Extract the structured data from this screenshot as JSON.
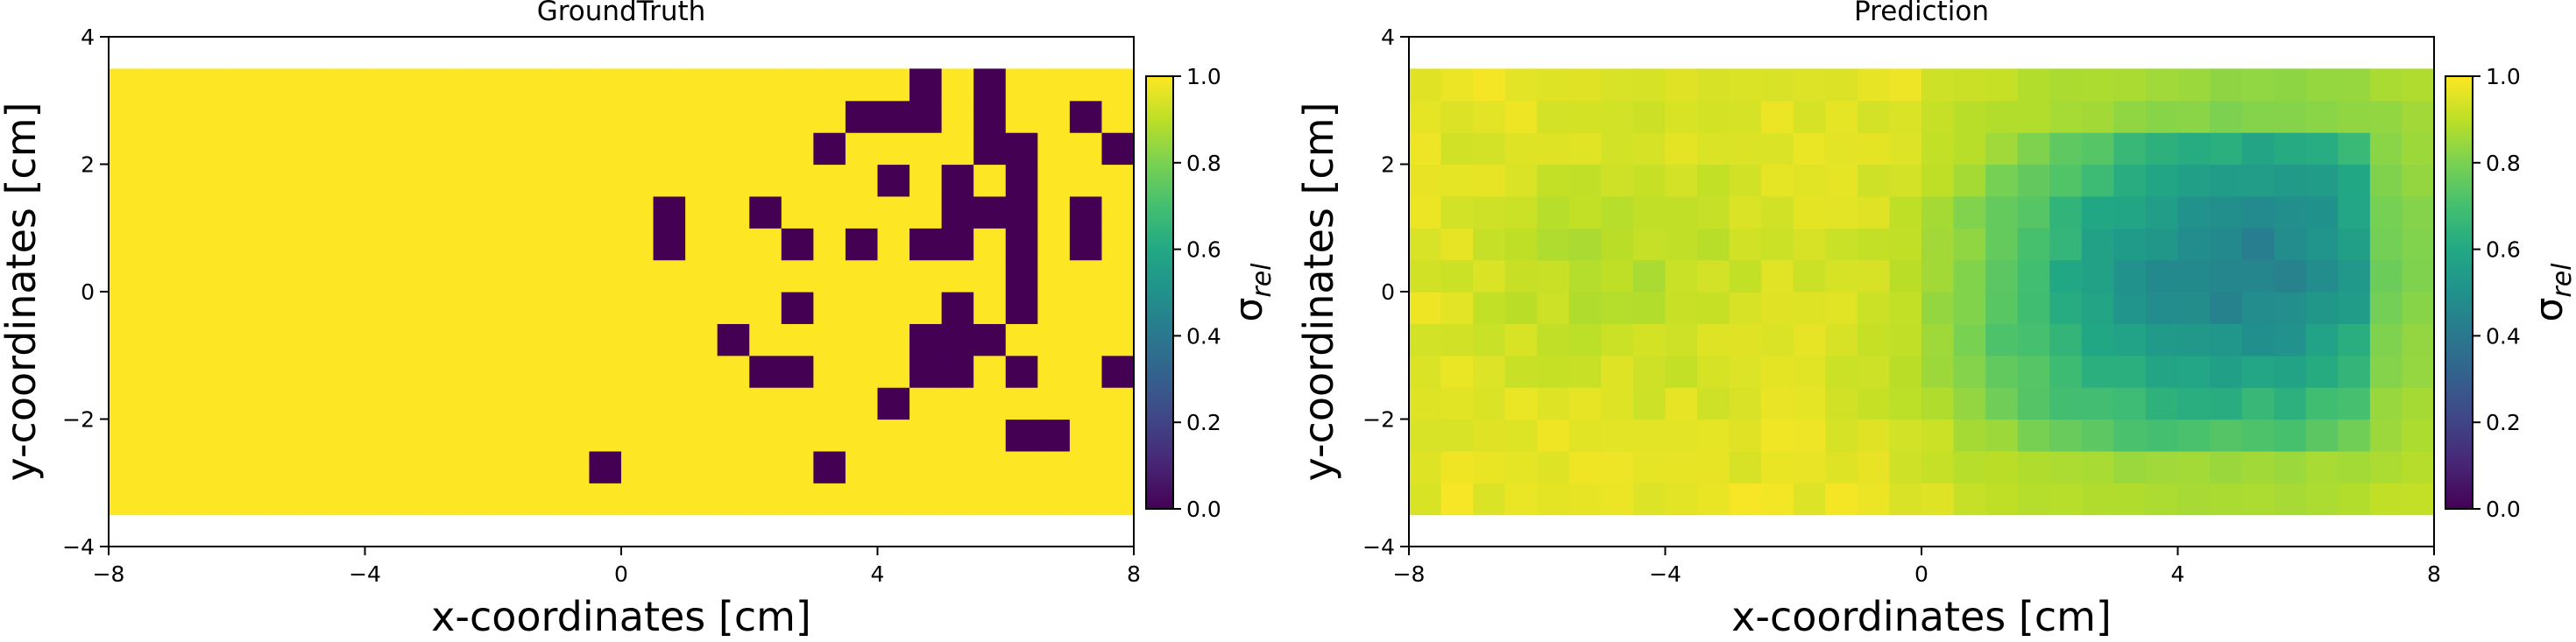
{
  "chart_data": [
    {
      "type": "heatmap",
      "title": "GroundTruth",
      "xlabel": "x-coordinates [cm]",
      "ylabel": "y-coordinates [cm]",
      "xlim": [
        -8,
        8
      ],
      "ylim": [
        -4,
        4
      ],
      "xticks": [
        -8,
        -4,
        0,
        4,
        8
      ],
      "yticks": [
        -4,
        -2,
        0,
        2,
        4
      ],
      "xtick_labels": [
        "−8",
        "−4",
        "0",
        "4",
        "8"
      ],
      "ytick_labels": [
        "−4",
        "−2",
        "0",
        "2",
        "4"
      ],
      "grid": false,
      "colormap": "viridis",
      "colorbar": {
        "label": "σ_rel",
        "label_main": "σ",
        "label_sub": "rel",
        "range": [
          0,
          1
        ],
        "ticks": [
          "0.0",
          "0.2",
          "0.4",
          "0.6",
          "0.8",
          "1.0"
        ]
      },
      "cell_extent": {
        "x": [
          -8,
          8
        ],
        "y": [
          -3.5,
          3.5
        ]
      },
      "cell_size_cm": 0.5,
      "default_value": 1.0,
      "zero_cells_xy": [
        [
          4.5,
          3.0
        ],
        [
          5.5,
          3.0
        ],
        [
          3.5,
          2.5
        ],
        [
          4.0,
          2.5
        ],
        [
          4.5,
          2.5
        ],
        [
          5.5,
          2.5
        ],
        [
          7.0,
          2.5
        ],
        [
          3.0,
          2.0
        ],
        [
          5.5,
          2.0
        ],
        [
          6.0,
          2.0
        ],
        [
          7.5,
          2.0
        ],
        [
          4.0,
          1.5
        ],
        [
          5.0,
          1.5
        ],
        [
          6.0,
          1.5
        ],
        [
          0.5,
          1.0
        ],
        [
          2.0,
          1.0
        ],
        [
          5.0,
          1.0
        ],
        [
          5.5,
          1.0
        ],
        [
          6.0,
          1.0
        ],
        [
          7.0,
          1.0
        ],
        [
          0.5,
          0.5
        ],
        [
          2.5,
          0.5
        ],
        [
          3.5,
          0.5
        ],
        [
          4.5,
          0.5
        ],
        [
          5.0,
          0.5
        ],
        [
          6.0,
          0.5
        ],
        [
          7.0,
          0.5
        ],
        [
          6.0,
          0.0
        ],
        [
          2.5,
          -0.5
        ],
        [
          5.0,
          -0.5
        ],
        [
          6.0,
          -0.5
        ],
        [
          1.5,
          -1.0
        ],
        [
          4.5,
          -1.0
        ],
        [
          5.0,
          -1.0
        ],
        [
          5.5,
          -1.0
        ],
        [
          2.0,
          -1.5
        ],
        [
          2.5,
          -1.5
        ],
        [
          4.5,
          -1.5
        ],
        [
          5.0,
          -1.5
        ],
        [
          6.0,
          -1.5
        ],
        [
          7.5,
          -1.5
        ],
        [
          4.0,
          -2.0
        ],
        [
          6.0,
          -2.5
        ],
        [
          6.5,
          -2.5
        ],
        [
          -0.5,
          -3.0
        ],
        [
          3.0,
          -3.0
        ]
      ]
    },
    {
      "type": "heatmap",
      "title": "Prediction",
      "xlabel": "x-coordinates [cm]",
      "ylabel": "y-coordinates [cm]",
      "xlim": [
        -8,
        8
      ],
      "ylim": [
        -4,
        4
      ],
      "xticks": [
        -8,
        -4,
        0,
        4,
        8
      ],
      "yticks": [
        -4,
        -2,
        0,
        2,
        4
      ],
      "xtick_labels": [
        "−8",
        "−4",
        "0",
        "4",
        "8"
      ],
      "ytick_labels": [
        "−4",
        "−2",
        "0",
        "2",
        "4"
      ],
      "grid": false,
      "colormap": "viridis",
      "colorbar": {
        "label": "σ_rel",
        "label_main": "σ",
        "label_sub": "rel",
        "range": [
          0,
          1
        ],
        "ticks": [
          "0.0",
          "0.2",
          "0.4",
          "0.6",
          "0.8",
          "1.0"
        ]
      },
      "cell_extent": {
        "x": [
          -8,
          8
        ],
        "y": [
          -3.5,
          3.5
        ]
      },
      "cell_size_cm": 0.5,
      "field": {
        "form": "smooth_estimate",
        "background": 0.97,
        "blobs": [
          {
            "cx": 5.3,
            "cy": 0.2,
            "sx": 2.1,
            "sy": 2.2,
            "depth": 0.5
          },
          {
            "cx": 2.0,
            "cy": -0.5,
            "sx": 1.6,
            "sy": 2.0,
            "depth": 0.22
          },
          {
            "cx": -5.0,
            "cy": 0.2,
            "sx": 1.8,
            "sy": 1.5,
            "depth": 0.08
          }
        ],
        "x_cutoff": 7.0,
        "y_cutoff_top": 2.5,
        "y_cutoff_bottom": -3.0
      }
    }
  ]
}
